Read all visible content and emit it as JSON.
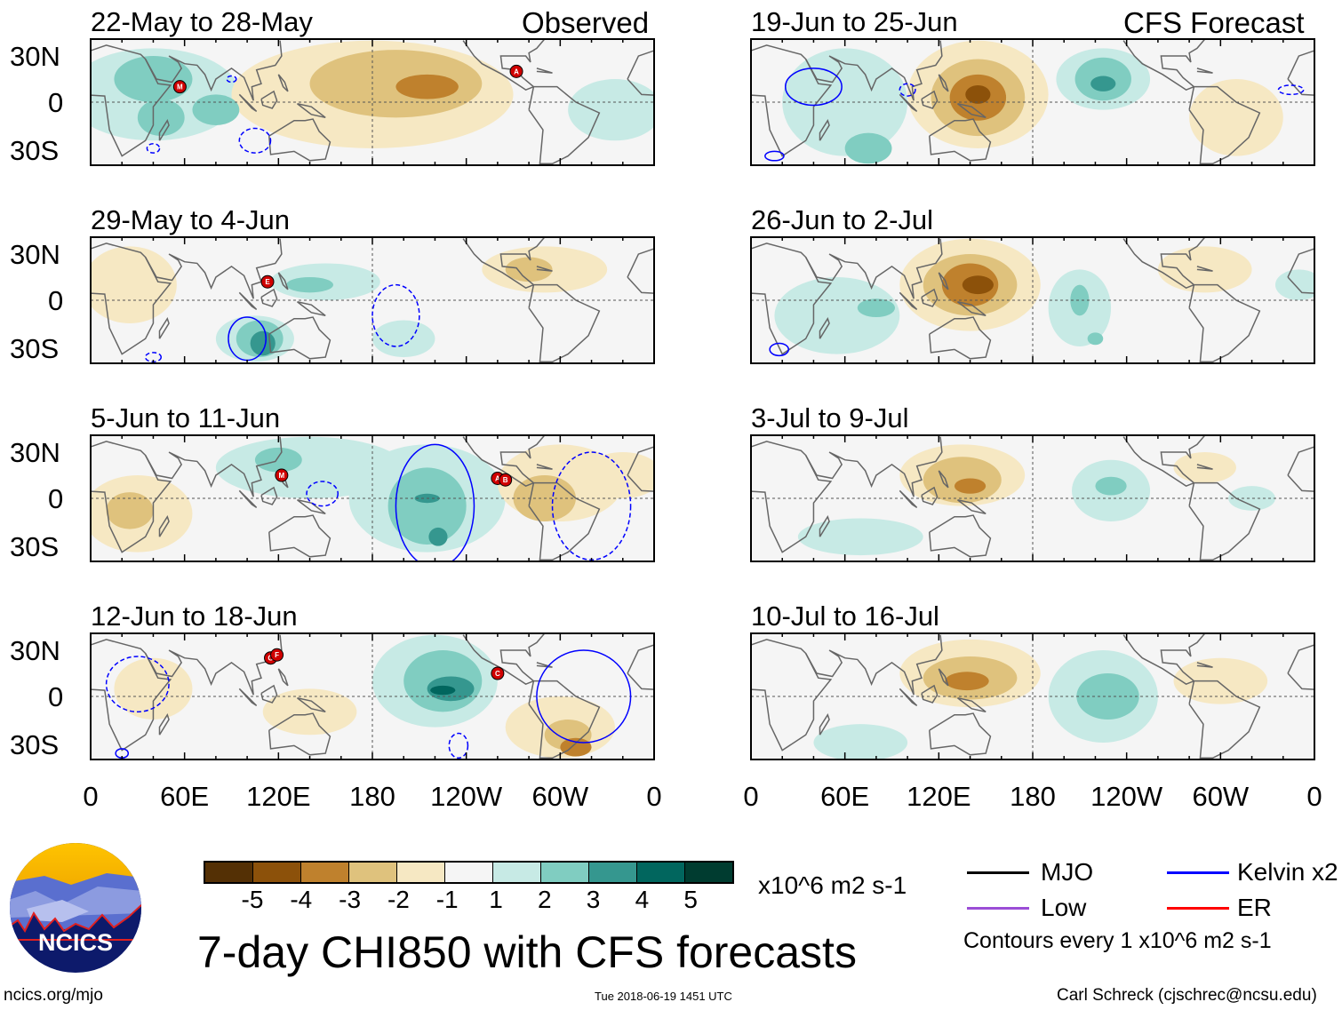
{
  "header": {
    "left_label": "Observed",
    "right_label": "CFS Forecast"
  },
  "colors": {
    "levels": [
      "#543005",
      "#8c510a",
      "#bf812d",
      "#dfc27d",
      "#f6e8c3",
      "#f5f5f5",
      "#c7eae5",
      "#80cdc1",
      "#35978f",
      "#01665e",
      "#003c30"
    ],
    "mjo": "#000000",
    "kelvin": "#0000ff",
    "low": "#9b4dd6",
    "er": "#ff0000",
    "land": "#666666"
  },
  "lat_labels": [
    "30N",
    "0",
    "30S"
  ],
  "lon_labels": [
    "0",
    "60E",
    "120E",
    "180",
    "120W",
    "60W",
    "0"
  ],
  "panels": [
    {
      "title": "22-May to 28-May",
      "col": 0,
      "row": 0,
      "blobs": [
        [
          40,
          5,
          55,
          30,
          1
        ],
        [
          40,
          15,
          25,
          15,
          2
        ],
        [
          80,
          -5,
          15,
          10,
          2
        ],
        [
          180,
          5,
          90,
          35,
          -1
        ],
        [
          195,
          12,
          55,
          22,
          -2
        ],
        [
          215,
          10,
          20,
          8,
          -3
        ],
        [
          335,
          -5,
          30,
          20,
          1
        ],
        [
          45,
          -10,
          15,
          12,
          2
        ]
      ],
      "kelvin": [
        [
          105,
          -25,
          10,
          8,
          "dash"
        ],
        [
          40,
          -30,
          4,
          3,
          "dash"
        ],
        [
          90,
          15,
          3,
          2,
          "dash"
        ]
      ],
      "storms": [
        [
          "M",
          57,
          10
        ],
        [
          "A",
          272,
          20
        ]
      ]
    },
    {
      "title": "29-May to 4-Jun",
      "col": 0,
      "row": 0,
      "blobs": [
        [
          25,
          10,
          30,
          25,
          -1
        ],
        [
          105,
          -25,
          25,
          15,
          1
        ],
        [
          108,
          -25,
          15,
          12,
          2
        ],
        [
          110,
          -28,
          8,
          8,
          3
        ],
        [
          150,
          12,
          35,
          12,
          1
        ],
        [
          140,
          10,
          15,
          5,
          2
        ],
        [
          290,
          20,
          40,
          15,
          -1
        ],
        [
          280,
          20,
          15,
          8,
          -2
        ],
        [
          200,
          -25,
          20,
          12,
          1
        ]
      ],
      "kelvin": [
        [
          100,
          -25,
          12,
          14,
          "solid"
        ],
        [
          195,
          -10,
          15,
          20,
          "dash"
        ],
        [
          40,
          -37,
          5,
          3,
          "dash"
        ]
      ],
      "storms": [
        [
          "E",
          113,
          12
        ]
      ]
    },
    {
      "title": "5-Jun to 11-Jun",
      "col": 0,
      "row": 0,
      "blobs": [
        [
          140,
          20,
          60,
          20,
          1
        ],
        [
          215,
          0,
          50,
          35,
          1
        ],
        [
          215,
          -5,
          25,
          25,
          2
        ],
        [
          215,
          0,
          8,
          3,
          3
        ],
        [
          222,
          -25,
          6,
          6,
          3
        ],
        [
          30,
          -10,
          35,
          25,
          -1
        ],
        [
          25,
          -8,
          15,
          12,
          -2
        ],
        [
          300,
          10,
          40,
          25,
          -1
        ],
        [
          290,
          0,
          20,
          15,
          -2
        ],
        [
          340,
          15,
          25,
          15,
          -1
        ],
        [
          120,
          25,
          15,
          8,
          2
        ]
      ],
      "kelvin": [
        [
          220,
          -5,
          25,
          40,
          "solid"
        ],
        [
          148,
          3,
          10,
          8,
          "dash"
        ],
        [
          320,
          -5,
          25,
          35,
          "dash"
        ]
      ],
      "storms": [
        [
          "M",
          122,
          15
        ],
        [
          "A",
          260,
          13
        ],
        [
          "B",
          265,
          12
        ]
      ]
    },
    {
      "title": "12-Jun to 18-Jun",
      "col": 0,
      "row": 0,
      "blobs": [
        [
          220,
          10,
          40,
          30,
          1
        ],
        [
          225,
          10,
          25,
          20,
          2
        ],
        [
          230,
          5,
          15,
          8,
          3
        ],
        [
          225,
          4,
          8,
          3,
          4
        ],
        [
          300,
          -20,
          35,
          20,
          -1
        ],
        [
          305,
          -25,
          15,
          10,
          -2
        ],
        [
          310,
          -33,
          10,
          6,
          -3
        ],
        [
          140,
          -10,
          30,
          15,
          -1
        ],
        [
          40,
          5,
          25,
          20,
          -1
        ]
      ],
      "kelvin": [
        [
          315,
          0,
          30,
          30,
          "solid"
        ],
        [
          30,
          8,
          20,
          18,
          "dash"
        ],
        [
          235,
          -32,
          6,
          8,
          "dash"
        ],
        [
          20,
          -37,
          4,
          3,
          "solid"
        ]
      ],
      "storms": [
        [
          "G",
          115,
          25
        ],
        [
          "F",
          119,
          27
        ],
        [
          "C",
          260,
          15
        ]
      ]
    },
    {
      "title": "19-Jun to 25-Jun",
      "col": 1,
      "row": 0,
      "blobs": [
        [
          145,
          5,
          45,
          35,
          -1
        ],
        [
          145,
          3,
          30,
          25,
          -2
        ],
        [
          145,
          3,
          18,
          15,
          -3
        ],
        [
          145,
          5,
          8,
          6,
          -4
        ],
        [
          225,
          15,
          30,
          20,
          1
        ],
        [
          225,
          15,
          18,
          14,
          2
        ],
        [
          225,
          12,
          8,
          5,
          3
        ],
        [
          60,
          0,
          40,
          35,
          1
        ],
        [
          75,
          -30,
          15,
          10,
          2
        ],
        [
          310,
          -10,
          30,
          25,
          -1
        ]
      ],
      "kelvin": [
        [
          40,
          10,
          18,
          12,
          "solid"
        ],
        [
          15,
          -35,
          6,
          3,
          "solid"
        ],
        [
          345,
          8,
          8,
          3,
          "dash"
        ],
        [
          100,
          8,
          5,
          4,
          "dash"
        ]
      ],
      "storms": []
    },
    {
      "title": "26-Jun to 2-Jul",
      "col": 1,
      "row": 0,
      "blobs": [
        [
          140,
          10,
          45,
          30,
          -1
        ],
        [
          140,
          10,
          30,
          20,
          -2
        ],
        [
          140,
          10,
          18,
          14,
          -3
        ],
        [
          145,
          10,
          10,
          6,
          -4
        ],
        [
          210,
          -5,
          20,
          25,
          1
        ],
        [
          210,
          0,
          6,
          10,
          2
        ],
        [
          220,
          -25,
          5,
          4,
          2
        ],
        [
          55,
          -10,
          40,
          25,
          1
        ],
        [
          80,
          -5,
          12,
          6,
          2
        ],
        [
          290,
          20,
          30,
          15,
          -1
        ],
        [
          350,
          10,
          15,
          10,
          1
        ]
      ],
      "kelvin": [
        [
          18,
          -32,
          6,
          4,
          "solid"
        ]
      ],
      "storms": []
    },
    {
      "title": "3-Jul to 9-Jul",
      "col": 1,
      "row": 0,
      "blobs": [
        [
          135,
          15,
          40,
          20,
          -1
        ],
        [
          135,
          12,
          25,
          15,
          -2
        ],
        [
          140,
          8,
          10,
          5,
          -3
        ],
        [
          230,
          5,
          25,
          20,
          1
        ],
        [
          230,
          8,
          10,
          6,
          2
        ],
        [
          70,
          -25,
          40,
          12,
          1
        ],
        [
          320,
          0,
          15,
          8,
          1
        ],
        [
          290,
          20,
          20,
          10,
          -1
        ]
      ],
      "kelvin": [],
      "storms": []
    },
    {
      "title": "10-Jul to 16-Jul",
      "col": 1,
      "row": 0,
      "blobs": [
        [
          140,
          15,
          45,
          22,
          -1
        ],
        [
          140,
          12,
          30,
          14,
          -2
        ],
        [
          138,
          10,
          14,
          6,
          -3
        ],
        [
          225,
          0,
          35,
          30,
          1
        ],
        [
          228,
          0,
          20,
          15,
          2
        ],
        [
          70,
          -30,
          30,
          12,
          1
        ],
        [
          300,
          10,
          30,
          15,
          -1
        ]
      ],
      "kelvin": [],
      "storms": []
    }
  ],
  "colorbar": {
    "labels": [
      "-5",
      "-4",
      "-3",
      "-2",
      "-1",
      "1",
      "2",
      "3",
      "4",
      "5"
    ],
    "units": "x10^6 m2 s-1"
  },
  "title": "7-day CHI850 with CFS forecasts",
  "legend": {
    "mjo": "MJO",
    "kelvin": "Kelvin x2",
    "low": "Low",
    "er": "ER",
    "contours": "Contours every 1 x10^6 m2 s-1"
  },
  "logo": {
    "text": "NCICS"
  },
  "footer": {
    "url": "ncics.org/mjo",
    "timestamp": "Tue 2018-06-19 1451 UTC",
    "author": "Carl Schreck (cjschrec@ncsu.edu)"
  }
}
